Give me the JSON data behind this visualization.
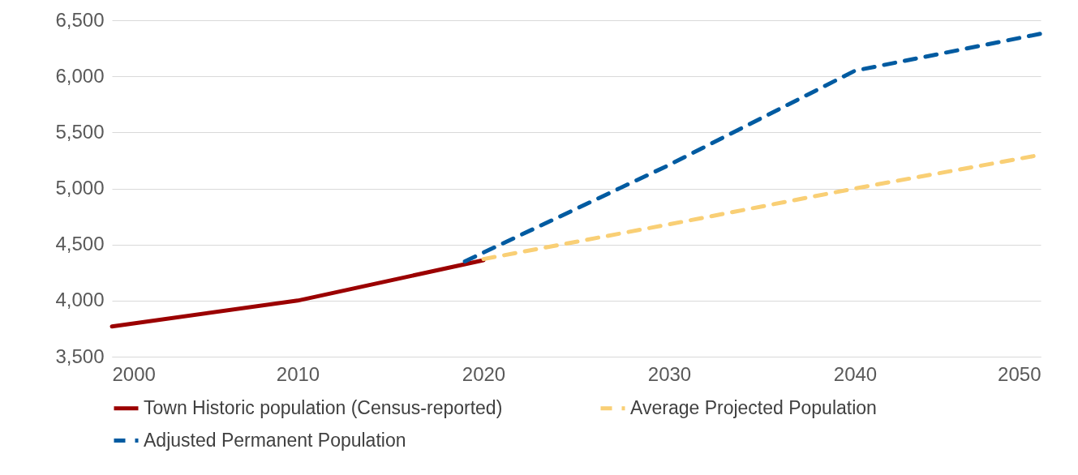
{
  "chart_data": {
    "type": "line",
    "series": [
      {
        "name": "Town Historic population (Census-reported)",
        "color": "#9b0000",
        "line_style": "solid",
        "x": [
          2000,
          2010,
          2020
        ],
        "values": [
          3770,
          4000,
          4360
        ]
      },
      {
        "name": "Average Projected Population",
        "color": "#f9cf75",
        "line_style": "dashed",
        "x": [
          2020,
          2030,
          2040,
          2050
        ],
        "values": [
          4370,
          4680,
          5000,
          5300
        ]
      },
      {
        "name": "Adjusted Permanent Population",
        "color": "#005ba1",
        "line_style": "dashed",
        "x": [
          2019,
          2030,
          2040,
          2050
        ],
        "values": [
          4350,
          5210,
          6050,
          6380
        ]
      }
    ],
    "xlim": [
      2000,
      2050
    ],
    "xticks": [
      2000,
      2010,
      2020,
      2030,
      2040,
      2050
    ],
    "ylim": [
      3500,
      6500
    ],
    "yticks": [
      {
        "value": 3500,
        "label": "3,500"
      },
      {
        "value": 4000,
        "label": "4,000"
      },
      {
        "value": 4500,
        "label": "4,500"
      },
      {
        "value": 5000,
        "label": "5,000"
      },
      {
        "value": 5500,
        "label": "5,500"
      },
      {
        "value": 6000,
        "label": "6,000"
      },
      {
        "value": 6500,
        "label": "6,500"
      }
    ],
    "grid": "y",
    "legend": "bottom",
    "marker": "none"
  }
}
